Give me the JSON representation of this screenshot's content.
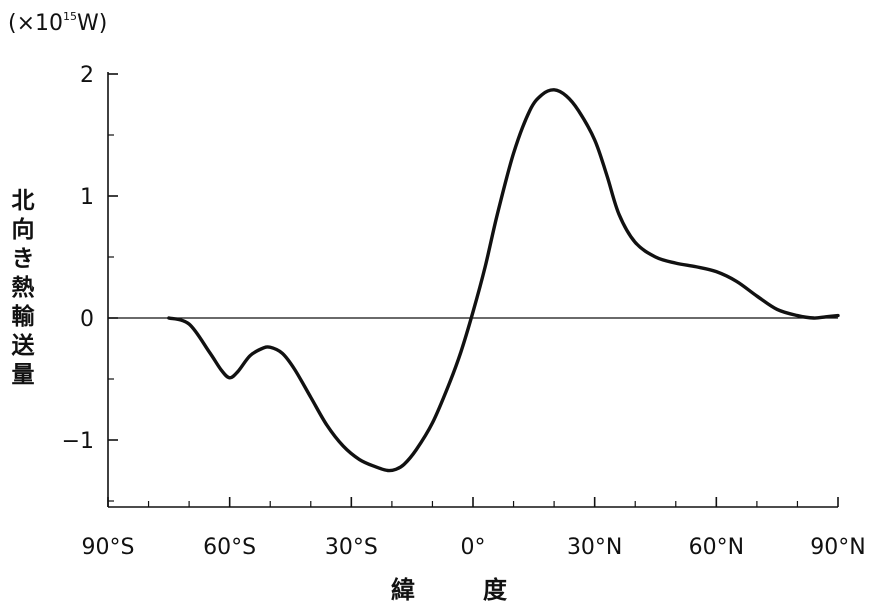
{
  "chart_data": {
    "type": "line",
    "unit": {
      "prefix": "(×10",
      "exponent": "15",
      "suffix": "W)"
    },
    "ylabel": "北向き熱輸送量",
    "xlabel": "緯　度",
    "xlim": [
      -90,
      90
    ],
    "ylim": [
      -1.55,
      2.05
    ],
    "x_ticks": [
      {
        "value": -90,
        "label": "90°S"
      },
      {
        "value": -60,
        "label": "60°S"
      },
      {
        "value": -30,
        "label": "30°S"
      },
      {
        "value": 0,
        "label": "0°"
      },
      {
        "value": 30,
        "label": "30°N"
      },
      {
        "value": 60,
        "label": "60°N"
      },
      {
        "value": 90,
        "label": "90°N"
      }
    ],
    "y_ticks": [
      {
        "value": 2,
        "label": "2"
      },
      {
        "value": 1,
        "label": "1"
      },
      {
        "value": 0,
        "label": "0"
      },
      {
        "value": -1,
        "label": "−1"
      }
    ],
    "zero_line": true,
    "grid": false,
    "series": [
      {
        "x": [
          -75,
          -70,
          -65,
          -62,
          -60,
          -58,
          -55,
          -52,
          -50,
          -47,
          -44,
          -40,
          -36,
          -32,
          -28,
          -24,
          -21,
          -19,
          -17,
          -14,
          -10,
          -6,
          -3,
          0,
          3,
          6,
          10,
          14,
          17,
          20,
          23,
          26,
          30,
          33,
          36,
          40,
          45,
          50,
          55,
          60,
          65,
          70,
          75,
          80,
          84,
          87,
          90
        ],
        "y": [
          0.0,
          -0.05,
          -0.28,
          -0.43,
          -0.49,
          -0.44,
          -0.31,
          -0.25,
          -0.24,
          -0.29,
          -0.42,
          -0.65,
          -0.88,
          -1.05,
          -1.16,
          -1.22,
          -1.25,
          -1.24,
          -1.2,
          -1.08,
          -0.86,
          -0.55,
          -0.28,
          0.05,
          0.42,
          0.85,
          1.35,
          1.7,
          1.83,
          1.87,
          1.82,
          1.7,
          1.46,
          1.17,
          0.85,
          0.62,
          0.5,
          0.45,
          0.42,
          0.38,
          0.3,
          0.18,
          0.07,
          0.02,
          0.0,
          0.01,
          0.02
        ]
      }
    ]
  }
}
